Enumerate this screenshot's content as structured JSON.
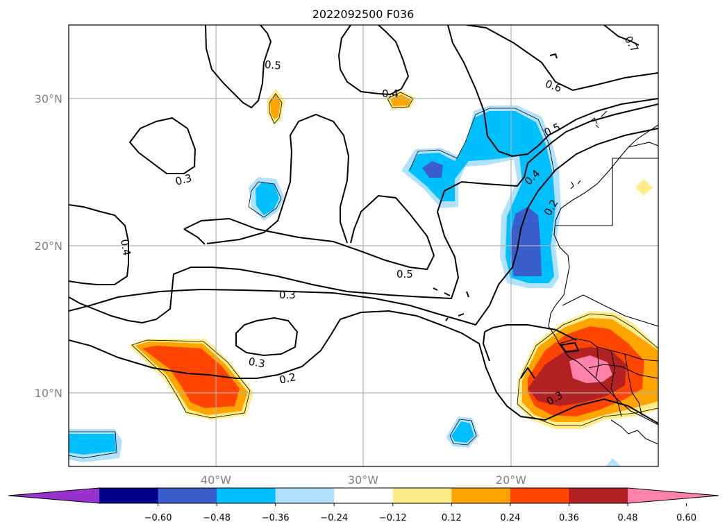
{
  "title": "2022092500 F036",
  "axes": {
    "lat_ticks": [
      "30°N",
      "20°N",
      "10°N"
    ],
    "lon_ticks": [
      "40°W",
      "30°W",
      "20°W"
    ]
  },
  "colorbar": {
    "labels": [
      "−0.60",
      "−0.48",
      "−0.36",
      "−0.24",
      "−0.12",
      "0.12",
      "0.24",
      "0.36",
      "0.48",
      "0.60"
    ],
    "colors": [
      "#9932cc",
      "#00008b",
      "#3a5fcd",
      "#00bfff",
      "#b0e2ff",
      "#ffffff",
      "#ffec8b",
      "#ffa500",
      "#ff4500",
      "#b22222",
      "#ff82ab"
    ]
  },
  "contour_labels": [
    "0.7",
    "0.5",
    "0.4",
    "0.6",
    "0.5",
    "0.3",
    "0.4",
    "0.4",
    "0.2",
    "0.5",
    "0.3",
    "0.3",
    "0.2",
    "0.3"
  ]
}
